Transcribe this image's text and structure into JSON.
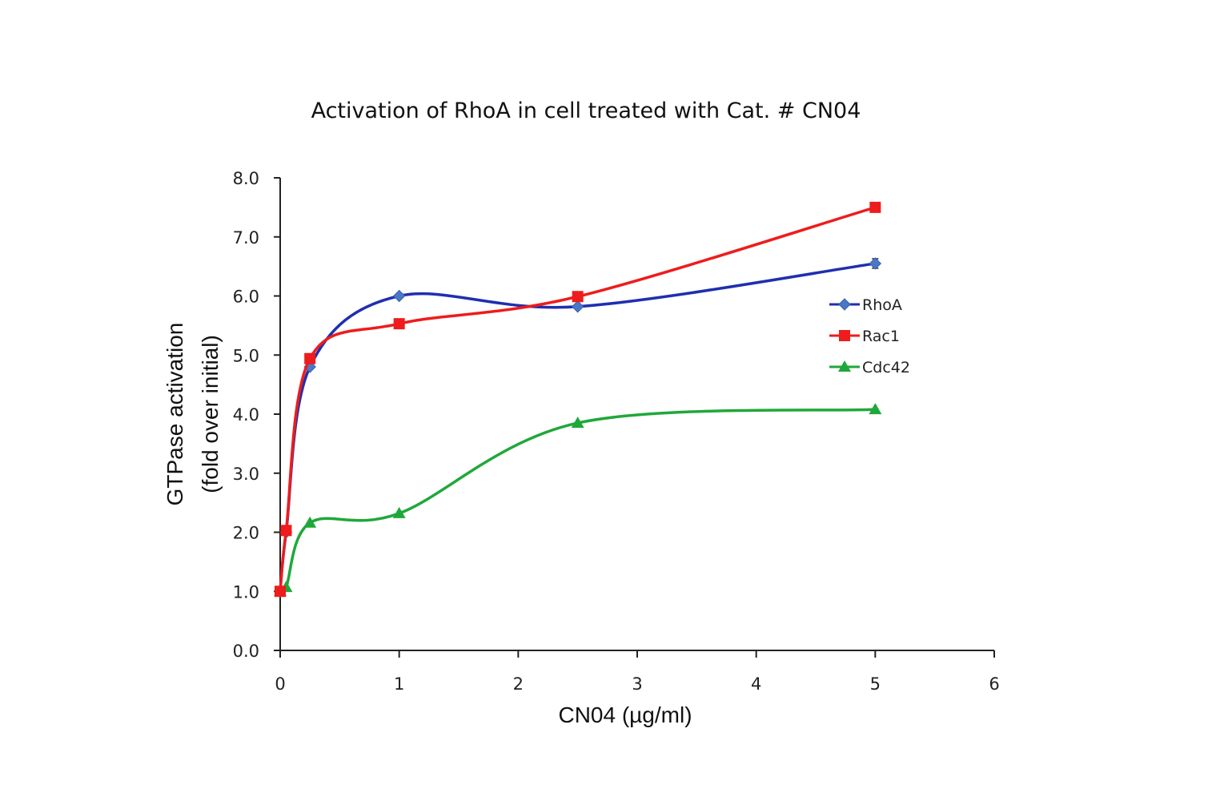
{
  "chart_data": {
    "type": "line",
    "title": "Activation of RhoA in cell treated with Cat. # CN04",
    "xlabel": "CN04 (µg/ml)",
    "ylabel_line1": "GTPase activation",
    "ylabel_line2": "(fold over initial)",
    "xlim": [
      0,
      6
    ],
    "ylim": [
      0,
      8
    ],
    "x_ticks": [
      "0",
      "1",
      "2",
      "3",
      "4",
      "5",
      "6"
    ],
    "y_ticks": [
      "0.0",
      "1.0",
      "2.0",
      "3.0",
      "4.0",
      "5.0",
      "6.0",
      "7.0",
      "8.0"
    ],
    "grid": false,
    "legend_position": "right",
    "x": [
      0,
      0.05,
      0.25,
      1,
      2.5,
      5
    ],
    "series": [
      {
        "name": "RhoA",
        "values": [
          1.0,
          2.0,
          4.8,
          6.0,
          5.82,
          6.55
        ],
        "error": [
          0,
          0,
          0,
          0,
          0,
          0.08
        ],
        "color": "#1f2fb0",
        "marker_color": "#4a78c8",
        "marker": "diamond"
      },
      {
        "name": "Rac1",
        "values": [
          1.0,
          2.03,
          4.94,
          5.53,
          5.99,
          7.5
        ],
        "color": "#ee1c1c",
        "marker": "square"
      },
      {
        "name": "Cdc42",
        "values": [
          1.0,
          1.07,
          2.16,
          2.32,
          3.85,
          4.08
        ],
        "color": "#1fa83a",
        "marker": "triangle"
      }
    ]
  }
}
